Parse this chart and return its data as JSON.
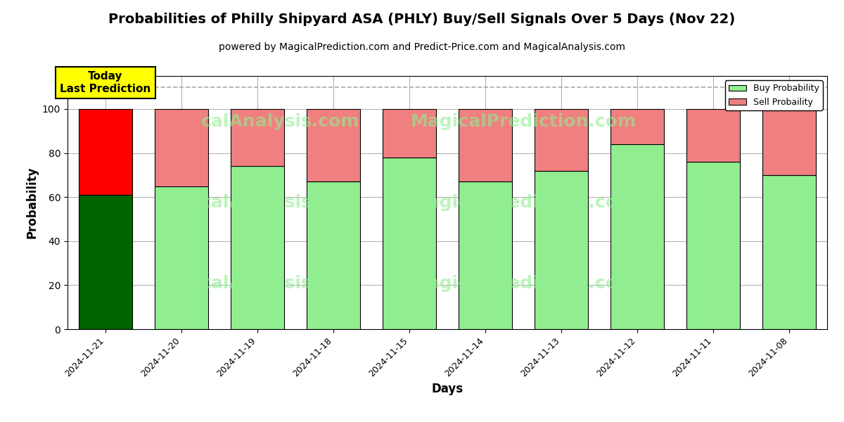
{
  "title": "Probabilities of Philly Shipyard ASA (PHLY) Buy/Sell Signals Over 5 Days (Nov 22)",
  "subtitle": "powered by MagicalPrediction.com and Predict-Price.com and MagicalAnalysis.com",
  "xlabel": "Days",
  "ylabel": "Probability",
  "categories": [
    "2024-11-21",
    "2024-11-20",
    "2024-11-19",
    "2024-11-18",
    "2024-11-15",
    "2024-11-14",
    "2024-11-13",
    "2024-11-12",
    "2024-11-11",
    "2024-11-08"
  ],
  "buy_values": [
    61,
    65,
    74,
    67,
    78,
    67,
    72,
    84,
    76,
    70
  ],
  "sell_values": [
    39,
    35,
    26,
    33,
    22,
    33,
    28,
    16,
    24,
    30
  ],
  "today_buy_color": "#006400",
  "today_sell_color": "#ff0000",
  "other_buy_color": "#90EE90",
  "other_sell_color": "#F08080",
  "bar_edge_color": "#000000",
  "background_color": "#ffffff",
  "grid_color": "#aaaaaa",
  "ylim": [
    0,
    115
  ],
  "yticks": [
    0,
    20,
    40,
    60,
    80,
    100
  ],
  "dashed_line_y": 110,
  "today_label": "Today\nLast Prediction",
  "today_label_bg": "#ffff00",
  "watermark_texts": [
    "calAnalysis.com",
    "MagicalPrediction.com"
  ],
  "watermark_color": "#90EE90",
  "watermark_alpha": 0.6,
  "legend_buy_label": "Buy Probability",
  "legend_sell_label": "Sell Probaility",
  "title_fontsize": 14,
  "subtitle_fontsize": 10,
  "axis_label_fontsize": 12,
  "bar_width": 0.7
}
